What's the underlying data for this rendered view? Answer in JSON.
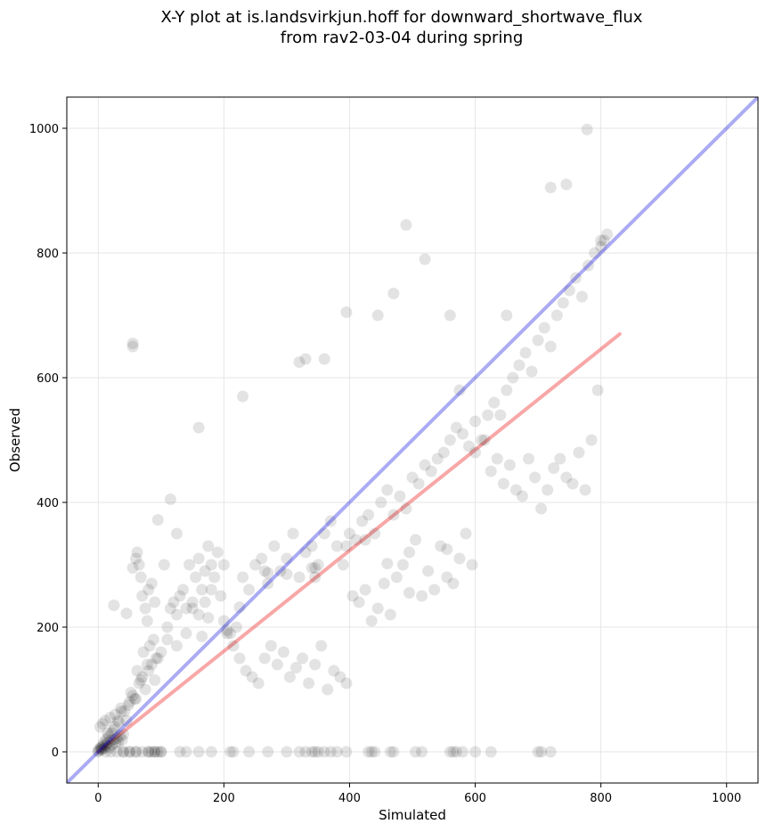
{
  "chart_data": {
    "type": "scatter",
    "title_line1": "X-Y plot at is.landsvirkjun.hoff for downward_shortwave_flux",
    "title_line2": "from rav2-03-04 during spring",
    "xlabel": "Simulated",
    "ylabel": "Observed",
    "xlim": [
      -50,
      1050
    ],
    "ylim": [
      -50,
      1050
    ],
    "xticks": [
      0,
      200,
      400,
      600,
      800,
      1000
    ],
    "yticks": [
      0,
      200,
      400,
      600,
      800,
      1000
    ],
    "grid": true,
    "colors": {
      "points": "#000000",
      "identity_line": "#0000dd",
      "fit_line": "#ee2222"
    },
    "identity_line": {
      "x": [
        -50,
        1050
      ],
      "y": [
        -50,
        1050
      ]
    },
    "fit_line": {
      "x": [
        0,
        830
      ],
      "y": [
        0,
        670
      ]
    },
    "series": [
      {
        "x": [
          0,
          2,
          4,
          5,
          6,
          8,
          10,
          12,
          14,
          16,
          18,
          20,
          22,
          25,
          28,
          30,
          32,
          35,
          38,
          40,
          3,
          7,
          11,
          15,
          19,
          24,
          27,
          33,
          36,
          42,
          5,
          9,
          13,
          17,
          21,
          26,
          31,
          37,
          45,
          50,
          55,
          60,
          65,
          70,
          75,
          80,
          85,
          90,
          95,
          100,
          48,
          52,
          58,
          62,
          68,
          72,
          78,
          82,
          88,
          92,
          105,
          110,
          115,
          120,
          125,
          130,
          135,
          140,
          145,
          150,
          155,
          160,
          165,
          170,
          175,
          180,
          185,
          190,
          195,
          200,
          60,
          62,
          65,
          68,
          70,
          75,
          78,
          80,
          85,
          90,
          110,
          125,
          140,
          150,
          160,
          170,
          180,
          200,
          210,
          220,
          230,
          240,
          250,
          260,
          270,
          280,
          290,
          300,
          310,
          320,
          330,
          340,
          350,
          360,
          370,
          380,
          390,
          400,
          410,
          420,
          205,
          215,
          225,
          235,
          245,
          255,
          265,
          275,
          285,
          295,
          305,
          315,
          325,
          335,
          345,
          355,
          365,
          375,
          385,
          395,
          430,
          440,
          450,
          460,
          470,
          480,
          490,
          500,
          510,
          520,
          530,
          540,
          550,
          560,
          570,
          580,
          590,
          600,
          610,
          620,
          405,
          415,
          425,
          435,
          445,
          455,
          465,
          475,
          485,
          495,
          505,
          515,
          525,
          535,
          545,
          555,
          565,
          575,
          585,
          595,
          630,
          640,
          650,
          660,
          670,
          680,
          690,
          700,
          710,
          720,
          730,
          740,
          750,
          760,
          770,
          780,
          790,
          800,
          805,
          810,
          600,
          615,
          625,
          635,
          645,
          655,
          665,
          675,
          685,
          695,
          705,
          715,
          725,
          735,
          745,
          755,
          765,
          775,
          785,
          795,
          55,
          55,
          115,
          160,
          230,
          320,
          330,
          360,
          395,
          445,
          470,
          490,
          520,
          560,
          575,
          650,
          720,
          745,
          778,
          800,
          25,
          45,
          55,
          95,
          125,
          165,
          175,
          205,
          225,
          265,
          270,
          300,
          340,
          345,
          345,
          395,
          425,
          460,
          495,
          555,
          12,
          20,
          30,
          40,
          50,
          60,
          70,
          80,
          90,
          100,
          0,
          40,
          50,
          60,
          80,
          85,
          90,
          95,
          100,
          130,
          140,
          160,
          180,
          210,
          215,
          240,
          270,
          300,
          320,
          330,
          340,
          345,
          350,
          360,
          370,
          380,
          395,
          430,
          435,
          440,
          465,
          470,
          505,
          515,
          560,
          565,
          570,
          580,
          600,
          625,
          700,
          705,
          720
        ],
        "y": [
          2,
          5,
          3,
          8,
          4,
          10,
          6,
          12,
          9,
          15,
          7,
          18,
          11,
          20,
          14,
          22,
          16,
          25,
          19,
          28,
          40,
          45,
          50,
          30,
          55,
          35,
          60,
          48,
          70,
          65,
          6,
          15,
          20,
          25,
          30,
          40,
          50,
          65,
          50,
          80,
          90,
          85,
          110,
          120,
          100,
          130,
          140,
          115,
          150,
          160,
          75,
          95,
          85,
          130,
          115,
          160,
          140,
          170,
          180,
          150,
          300,
          180,
          230,
          240,
          220,
          250,
          260,
          230,
          300,
          240,
          280,
          310,
          260,
          290,
          330,
          300,
          280,
          320,
          250,
          300,
          310,
          320,
          300,
          280,
          250,
          230,
          210,
          260,
          270,
          240,
          200,
          170,
          190,
          230,
          220,
          240,
          260,
          210,
          190,
          200,
          280,
          260,
          300,
          310,
          270,
          330,
          290,
          310,
          350,
          280,
          320,
          330,
          300,
          350,
          370,
          330,
          300,
          350,
          340,
          370,
          190,
          170,
          150,
          130,
          120,
          110,
          150,
          170,
          140,
          160,
          120,
          135,
          150,
          110,
          140,
          170,
          100,
          130,
          120,
          110,
          380,
          350,
          400,
          420,
          380,
          410,
          390,
          440,
          430,
          460,
          450,
          470,
          480,
          500,
          520,
          510,
          490,
          530,
          500,
          540,
          250,
          240,
          260,
          210,
          230,
          270,
          220,
          280,
          300,
          320,
          340,
          250,
          290,
          260,
          330,
          280,
          270,
          310,
          350,
          300,
          560,
          540,
          580,
          600,
          620,
          640,
          610,
          660,
          680,
          650,
          700,
          720,
          740,
          760,
          730,
          780,
          800,
          810,
          820,
          830,
          480,
          500,
          450,
          470,
          430,
          460,
          420,
          410,
          470,
          440,
          390,
          420,
          455,
          470,
          440,
          430,
          480,
          420,
          500,
          580,
          655,
          650,
          405,
          520,
          570,
          625,
          630,
          630,
          705,
          700,
          735,
          845,
          790,
          700,
          580,
          700,
          905,
          910,
          998,
          820,
          235,
          222,
          295,
          372,
          350,
          185,
          215,
          195,
          232,
          290,
          287,
          285,
          295,
          295,
          280,
          330,
          340,
          302,
          255,
          325,
          0,
          0,
          0,
          0,
          0,
          0,
          0,
          0,
          0,
          0,
          0,
          0,
          0,
          0,
          0,
          0,
          0,
          0,
          0,
          0,
          0,
          0,
          0,
          0,
          0,
          0,
          0,
          0,
          0,
          0,
          0,
          0,
          0,
          0,
          0,
          0,
          0,
          0,
          0,
          0,
          0,
          0,
          0,
          0,
          0,
          0,
          0,
          0,
          0,
          0,
          0,
          0,
          0
        ]
      }
    ]
  }
}
